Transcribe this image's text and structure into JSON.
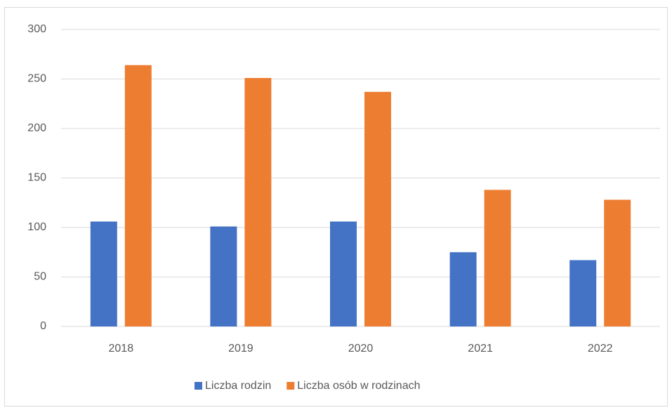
{
  "chart_data": {
    "type": "bar",
    "categories": [
      "2018",
      "2019",
      "2020",
      "2021",
      "2022"
    ],
    "series": [
      {
        "name": "Liczba rodzin",
        "color": "#4472c4",
        "values": [
          106,
          101,
          106,
          75,
          67
        ]
      },
      {
        "name": "Liczba osób w rodzinach",
        "color": "#ed7d31",
        "values": [
          264,
          251,
          237,
          138,
          128
        ]
      }
    ],
    "ylim": [
      0,
      300
    ],
    "yticks": [
      0,
      50,
      100,
      150,
      200,
      250,
      300
    ],
    "grid": true,
    "legend": "bottom"
  }
}
